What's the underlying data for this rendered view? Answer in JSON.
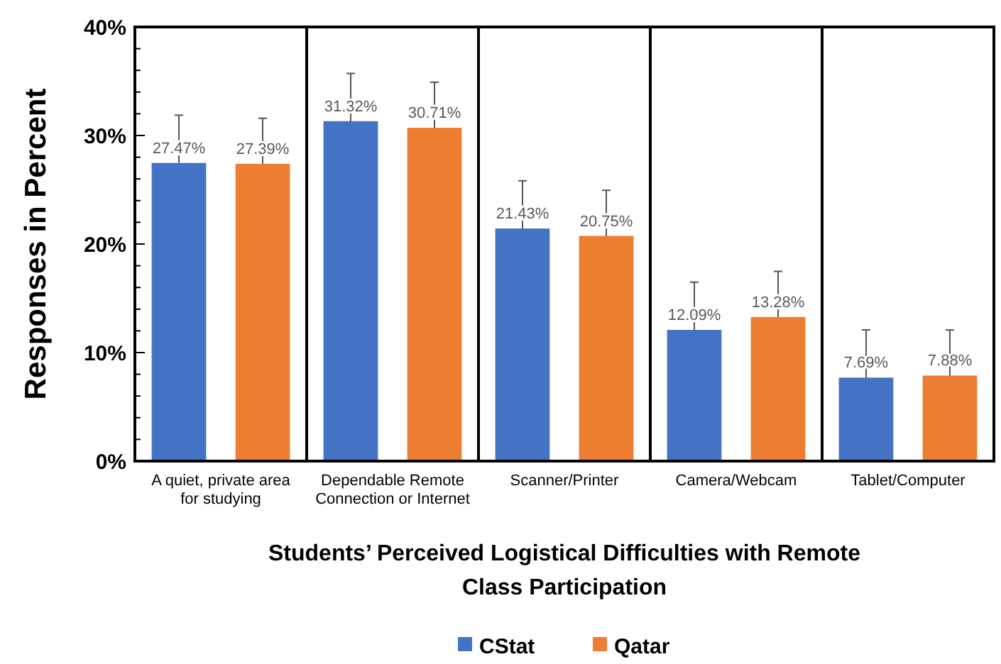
{
  "chart_data": {
    "type": "bar",
    "xlabel": "Students’ Perceived Logistical Difficulties with Remote Class Participation",
    "ylabel": "Responses in Percent",
    "categories": [
      "A quiet, private area for studying",
      "Dependable Remote Connection or Internet",
      "Scanner/Printer",
      "Camera/Webcam",
      "Tablet/Computer"
    ],
    "series": [
      {
        "name": "CStat",
        "color": "#4472c4",
        "values": [
          27.47,
          31.32,
          21.43,
          12.09,
          7.69
        ],
        "value_labels": [
          "27.47%",
          "31.32%",
          "21.43%",
          "12.09%",
          "7.69%"
        ],
        "errors": [
          4.4,
          4.4,
          4.4,
          4.4,
          4.4
        ]
      },
      {
        "name": "Qatar",
        "color": "#ed7d31",
        "values": [
          27.39,
          30.71,
          20.75,
          13.28,
          7.88
        ],
        "value_labels": [
          "27.39%",
          "30.71%",
          "20.75%",
          "13.28%",
          "7.88%"
        ],
        "errors": [
          4.2,
          4.2,
          4.2,
          4.2,
          4.2
        ]
      }
    ],
    "ylim": [
      0,
      40
    ],
    "yticks": [
      {
        "value": 0,
        "label": "0%"
      },
      {
        "value": 2,
        "label": null
      },
      {
        "value": 4,
        "label": null
      },
      {
        "value": 6,
        "label": null
      },
      {
        "value": 8,
        "label": null
      },
      {
        "value": 10,
        "label": "10%"
      },
      {
        "value": 12,
        "label": null
      },
      {
        "value": 14,
        "label": null
      },
      {
        "value": 16,
        "label": null
      },
      {
        "value": 18,
        "label": null
      },
      {
        "value": 20,
        "label": "20%"
      },
      {
        "value": 22,
        "label": null
      },
      {
        "value": 24,
        "label": null
      },
      {
        "value": 26,
        "label": null
      },
      {
        "value": 28,
        "label": null
      },
      {
        "value": 30,
        "label": "30%"
      },
      {
        "value": 32,
        "label": null
      },
      {
        "value": 34,
        "label": null
      },
      {
        "value": 36,
        "label": null
      },
      {
        "value": 38,
        "label": null
      },
      {
        "value": 40,
        "label": "40%"
      }
    ],
    "legend": "bottom"
  }
}
